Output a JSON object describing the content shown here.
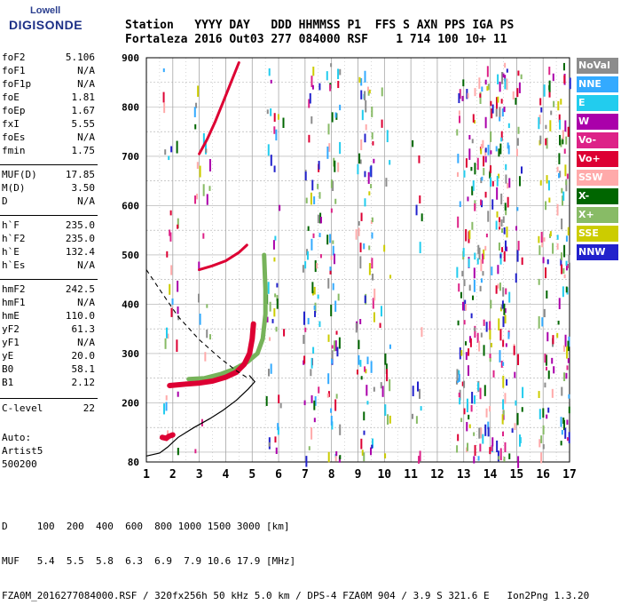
{
  "logo": {
    "line1": "Lowell",
    "line2": "DIGISONDE"
  },
  "header": {
    "line1": "Station   YYYY DAY   DDD HHMMSS P1  FFS S AXN PPS IGA PS",
    "line2": "Fortaleza 2016 Out03 277 084000 RSF    1 714 100 10+ 11"
  },
  "params": [
    {
      "name": "foF2",
      "value": "5.106"
    },
    {
      "name": "foF1",
      "value": "N/A"
    },
    {
      "name": "foF1p",
      "value": "N/A"
    },
    {
      "name": "foE",
      "value": "1.81"
    },
    {
      "name": "foEp",
      "value": "1.67"
    },
    {
      "name": "fxI",
      "value": "5.55"
    },
    {
      "name": "foEs",
      "value": "N/A"
    },
    {
      "name": "fmin",
      "value": "1.75"
    },
    {
      "name": "MUF(D)",
      "value": "17.85"
    },
    {
      "name": "M(D)",
      "value": "3.50"
    },
    {
      "name": "D",
      "value": "N/A"
    },
    {
      "name": "h`F",
      "value": "235.0"
    },
    {
      "name": "h`F2",
      "value": "235.0"
    },
    {
      "name": "h`E",
      "value": "132.4"
    },
    {
      "name": "h`Es",
      "value": "N/A"
    },
    {
      "name": "hmF2",
      "value": "242.5"
    },
    {
      "name": "hmF1",
      "value": "N/A"
    },
    {
      "name": "hmE",
      "value": "110.0"
    },
    {
      "name": "yF2",
      "value": "61.3"
    },
    {
      "name": "yF1",
      "value": "N/A"
    },
    {
      "name": "yE",
      "value": "20.0"
    },
    {
      "name": "B0",
      "value": "58.1"
    },
    {
      "name": "B1",
      "value": "2.12"
    },
    {
      "name": "C-level",
      "value": "22"
    }
  ],
  "auto": {
    "label": "Auto:",
    "program": "Artist5",
    "version": "500200"
  },
  "legend": [
    {
      "label": "NoVal",
      "color": "#8c8c8c"
    },
    {
      "label": "NNE",
      "color": "#33aaff"
    },
    {
      "label": "E",
      "color": "#22ccee"
    },
    {
      "label": "W",
      "color": "#aa00aa"
    },
    {
      "label": "Vo-",
      "color": "#dd2288"
    },
    {
      "label": "Vo+",
      "color": "#dd0033"
    },
    {
      "label": "SSW",
      "color": "#ffaaaa"
    },
    {
      "label": "X-",
      "color": "#006600"
    },
    {
      "label": "X+",
      "color": "#88bb66"
    },
    {
      "label": "SSE",
      "color": "#cccc00"
    },
    {
      "label": "NNW",
      "color": "#2222cc"
    }
  ],
  "footer": {
    "line1": "D     100  200  400  600  800 1000 1500 3000 [km]",
    "line2": "MUF   5.4  5.5  5.8  6.3  6.9  7.9 10.6 17.9 [MHz]",
    "line3": "FZA0M_2016277084000.RSF / 320fx256h 50 kHz 5.0 km / DPS-4 FZA0M 904 / 3.9 S 321.6 E   Ion2Png 1.3.20"
  },
  "chart_data": {
    "type": "scatter",
    "xlim": [
      1,
      17
    ],
    "ylim": [
      80,
      900
    ],
    "x_ticks": [
      "1",
      "2",
      "3",
      "4",
      "5",
      "6",
      "7",
      "8",
      "9",
      "10",
      "11",
      "12",
      "13",
      "14",
      "15",
      "16",
      "17"
    ],
    "y_ticks": [
      "80",
      "200",
      "300",
      "400",
      "500",
      "600",
      "700",
      "800",
      "900"
    ],
    "grid": true,
    "ordinary_trace": [
      {
        "x": 1.88,
        "y": 235
      },
      {
        "x": 2.5,
        "y": 238
      },
      {
        "x": 3.0,
        "y": 240
      },
      {
        "x": 3.5,
        "y": 244
      },
      {
        "x": 4.0,
        "y": 252
      },
      {
        "x": 4.4,
        "y": 262
      },
      {
        "x": 4.7,
        "y": 278
      },
      {
        "x": 4.9,
        "y": 300
      },
      {
        "x": 5.0,
        "y": 330
      },
      {
        "x": 5.05,
        "y": 360
      }
    ],
    "extraordinary_trace": [
      {
        "x": 2.6,
        "y": 248
      },
      {
        "x": 3.2,
        "y": 250
      },
      {
        "x": 3.8,
        "y": 258
      },
      {
        "x": 4.3,
        "y": 268
      },
      {
        "x": 4.8,
        "y": 282
      },
      {
        "x": 5.2,
        "y": 300
      },
      {
        "x": 5.4,
        "y": 330
      },
      {
        "x": 5.5,
        "y": 380
      },
      {
        "x": 5.5,
        "y": 430
      },
      {
        "x": 5.45,
        "y": 500
      }
    ],
    "e_layer_trace": [
      {
        "x": 1.6,
        "y": 130
      },
      {
        "x": 1.75,
        "y": 128
      },
      {
        "x": 1.85,
        "y": 132
      },
      {
        "x": 2.0,
        "y": 135
      }
    ],
    "profile_curve": [
      {
        "x": 1.0,
        "y": 92
      },
      {
        "x": 1.5,
        "y": 98
      },
      {
        "x": 1.8,
        "y": 110
      },
      {
        "x": 2.2,
        "y": 130
      },
      {
        "x": 2.8,
        "y": 150
      },
      {
        "x": 3.4,
        "y": 168
      },
      {
        "x": 3.9,
        "y": 185
      },
      {
        "x": 4.4,
        "y": 205
      },
      {
        "x": 4.85,
        "y": 228
      },
      {
        "x": 5.1,
        "y": 243
      },
      {
        "x": 4.9,
        "y": 255
      }
    ],
    "dashed_curve": [
      {
        "x": 1.0,
        "y": 470
      },
      {
        "x": 1.5,
        "y": 430
      },
      {
        "x": 2.2,
        "y": 375
      },
      {
        "x": 3.0,
        "y": 328
      },
      {
        "x": 3.8,
        "y": 290
      },
      {
        "x": 4.4,
        "y": 265
      },
      {
        "x": 4.9,
        "y": 248
      }
    ],
    "second_hop_trace": [
      {
        "x": 3.0,
        "y": 470
      },
      {
        "x": 3.5,
        "y": 478
      },
      {
        "x": 4.0,
        "y": 488
      },
      {
        "x": 4.5,
        "y": 505
      },
      {
        "x": 4.8,
        "y": 520
      }
    ],
    "high_trace": [
      {
        "x": 3.0,
        "y": 705
      },
      {
        "x": 3.3,
        "y": 735
      },
      {
        "x": 3.6,
        "y": 770
      },
      {
        "x": 3.9,
        "y": 810
      },
      {
        "x": 4.2,
        "y": 850
      },
      {
        "x": 4.5,
        "y": 890
      }
    ]
  }
}
